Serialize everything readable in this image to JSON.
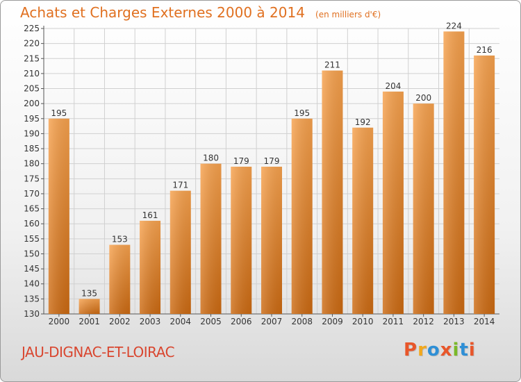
{
  "header": {
    "title": "Achats et Charges Externes 2000 à 2014",
    "unit": "(en milliers d'€)"
  },
  "footer": {
    "commune": "JAU-DIGNAC-ET-LOIRAC",
    "brand": "Proxiti",
    "brand_colors": [
      "#e8562a",
      "#f2a81d",
      "#2e8fd6",
      "#e8562a",
      "#7ab929",
      "#2e8fd6",
      "#e8562a"
    ]
  },
  "colors": {
    "bar_top": "#f7a24e",
    "bar_bottom": "#cc6a12",
    "title": "#e07020",
    "commune": "#d9462f",
    "grid": "#d0d0d0"
  },
  "chart_data": {
    "type": "bar",
    "title": "Achats et Charges Externes 2000 à 2014",
    "subtitle": "(en milliers d'€)",
    "categories": [
      "2000",
      "2001",
      "2002",
      "2003",
      "2004",
      "2005",
      "2006",
      "2007",
      "2008",
      "2009",
      "2010",
      "2011",
      "2012",
      "2013",
      "2014"
    ],
    "values": [
      195,
      135,
      153,
      161,
      171,
      180,
      179,
      179,
      195,
      211,
      192,
      204,
      200,
      224,
      216
    ],
    "ylim": [
      130,
      225
    ],
    "ytick_step": 5,
    "grid": true,
    "data_labels": true
  }
}
